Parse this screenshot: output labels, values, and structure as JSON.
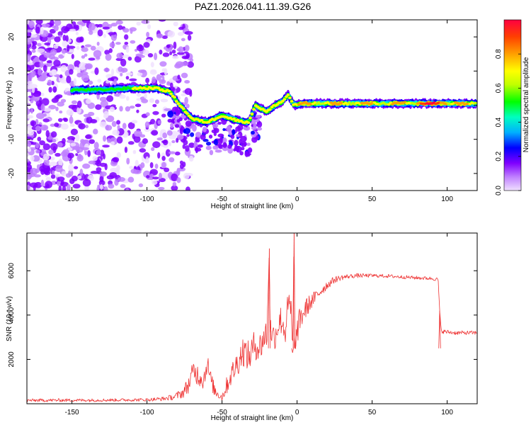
{
  "figure_title": "PAZ1.2026.041.11.39.G26",
  "chart_data": [
    {
      "type": "heatmap",
      "title": "PAZ1.2026.041.11.39.G26",
      "xlabel": "Height of straight line (km)",
      "ylabel": "Frequency (Hz)",
      "xlim": [
        -180,
        120
      ],
      "ylim": [
        -25,
        25
      ],
      "xticks": [
        -150,
        -100,
        -50,
        0,
        50,
        100
      ],
      "xtick_labels": [
        "-150",
        "-100",
        "-50",
        "0",
        "50",
        "100"
      ],
      "yticks": [
        -20,
        -10,
        0,
        10,
        20
      ],
      "ytick_labels": [
        "-20",
        "-10",
        "0",
        "10",
        "20"
      ],
      "colorbar": {
        "label": "Normalized spectral amplitude",
        "range": [
          0,
          1
        ],
        "ticks": [
          0.0,
          0.2,
          0.4,
          0.6,
          0.8
        ],
        "tick_labels": [
          "0.0",
          "0.2",
          "0.4",
          "0.6",
          "0.8"
        ],
        "colormap": [
          "#f0e0ff",
          "#c080ff",
          "#8000ff",
          "#0000ff",
          "#00b0ff",
          "#00ffc0",
          "#00ff00",
          "#c0ff00",
          "#ffff00",
          "#ffa000",
          "#ff4000",
          "#ff0040"
        ]
      },
      "ridge": {
        "x": [
          -180,
          -150,
          -130,
          -110,
          -95,
          -85,
          -78,
          -70,
          -60,
          -50,
          -40,
          -32,
          -28,
          -24,
          -20,
          -15,
          -10,
          -6,
          -2,
          5,
          20,
          50,
          80,
          100,
          120
        ],
        "y": [
          4,
          4.5,
          4.5,
          5,
          5,
          4,
          0,
          -4,
          -5,
          -3,
          -4.5,
          -5,
          0,
          -1,
          -2,
          0,
          1,
          3,
          0,
          0.5,
          0.5,
          0.5,
          0.5,
          0.5,
          0.5
        ]
      }
    },
    {
      "type": "line",
      "title": "",
      "xlabel": "Height of straight line (km)",
      "ylabel": "SNR (10 * v/v)",
      "xlim": [
        -180,
        120
      ],
      "ylim": [
        0,
        7700
      ],
      "xticks": [
        -150,
        -100,
        -50,
        0,
        50,
        100
      ],
      "xtick_labels": [
        "-150",
        "-100",
        "-50",
        "0",
        "50",
        "100"
      ],
      "yticks": [
        2000,
        4000,
        6000
      ],
      "ytick_labels": [
        "2000",
        "4000",
        "6000"
      ],
      "series": [
        {
          "name": "SNR",
          "color": "#ee3333",
          "x": [
            -180,
            -160,
            -140,
            -120,
            -100,
            -90,
            -82,
            -76,
            -72,
            -69,
            -66,
            -62,
            -60,
            -58,
            -55,
            -52,
            -50,
            -47,
            -44,
            -40,
            -36,
            -32,
            -28,
            -25,
            -22,
            -20,
            -18.5,
            -18,
            -17,
            -15,
            -12,
            -10,
            -8,
            -6,
            -4,
            -3,
            -2,
            -1.5,
            -1,
            0,
            2,
            5,
            8,
            12,
            16,
            20,
            25,
            30,
            35,
            40,
            50,
            60,
            70,
            80,
            90,
            94,
            95,
            96,
            98,
            105,
            110,
            115,
            120
          ],
          "y": [
            150,
            160,
            160,
            170,
            180,
            220,
            300,
            500,
            900,
            1500,
            1300,
            1100,
            1900,
            1200,
            600,
            400,
            300,
            800,
            1300,
            1800,
            2400,
            2100,
            2700,
            2500,
            3000,
            3200,
            7000,
            3400,
            3200,
            3000,
            3700,
            3800,
            3200,
            4400,
            4300,
            2300,
            7700,
            3000,
            2200,
            3300,
            3800,
            4200,
            4500,
            4800,
            5100,
            5350,
            5600,
            5700,
            5750,
            5780,
            5780,
            5760,
            5720,
            5680,
            5650,
            5600,
            4200,
            3300,
            3250,
            3200,
            3200,
            3200,
            3200
          ],
          "noise": [
            70,
            70,
            70,
            70,
            70,
            90,
            130,
            250,
            400,
            500,
            500,
            500,
            500,
            450,
            300,
            200,
            200,
            400,
            500,
            600,
            700,
            700,
            700,
            700,
            700,
            700,
            0,
            700,
            600,
            600,
            700,
            700,
            700,
            700,
            700,
            0,
            0,
            0,
            700,
            700,
            550,
            500,
            400,
            300,
            250,
            200,
            150,
            120,
            100,
            100,
            80,
            80,
            80,
            80,
            80,
            80,
            0,
            100,
            100,
            90,
            90,
            90,
            90
          ]
        }
      ]
    }
  ]
}
